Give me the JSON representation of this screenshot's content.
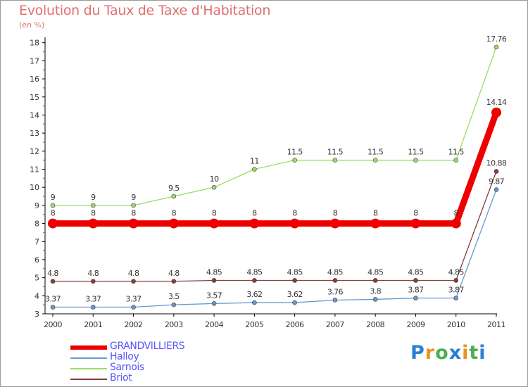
{
  "chart_data": {
    "type": "line",
    "title": "Evolution du Taux de Taxe d'Habitation",
    "ylabel": "(en %)",
    "xlabel": "",
    "ylim": [
      3,
      18.3
    ],
    "yticks": [
      3,
      4,
      5,
      6,
      7,
      8,
      9,
      10,
      11,
      12,
      13,
      14,
      15,
      16,
      17,
      18
    ],
    "categories": [
      "2000",
      "2001",
      "2002",
      "2003",
      "2004",
      "2005",
      "2006",
      "2007",
      "2008",
      "2009",
      "2010",
      "2011"
    ],
    "series": [
      {
        "name": "GRANDVILLIERS",
        "color": "#ee0000",
        "labelColor": "#333333",
        "values": [
          8,
          8,
          8,
          8,
          8,
          8,
          8,
          8,
          8,
          8,
          8,
          14.14
        ],
        "labels": [
          "8",
          "8",
          "8",
          "8",
          "8",
          "8",
          "8",
          "8",
          "8",
          "8",
          "8",
          "14.14"
        ]
      },
      {
        "name": "Halloy",
        "color": "#6699cc",
        "labelColor": "#333333",
        "values": [
          3.37,
          3.37,
          3.37,
          3.5,
          3.57,
          3.62,
          3.62,
          3.76,
          3.8,
          3.87,
          3.87,
          9.87
        ],
        "labels": [
          "3.37",
          "3.37",
          "3.37",
          "3.5",
          "3.57",
          "3.62",
          "3.62",
          "3.76",
          "3.8",
          "3.87",
          "3.87",
          "9.87"
        ]
      },
      {
        "name": "Sarnois",
        "color": "#99dd66",
        "labelColor": "#333333",
        "values": [
          9,
          9,
          9,
          9.5,
          10,
          11,
          11.5,
          11.5,
          11.5,
          11.5,
          11.5,
          17.76
        ],
        "labels": [
          "9",
          "9",
          "9",
          "9.5",
          "10",
          "11",
          "11.5",
          "11.5",
          "11.5",
          "11.5",
          "11.5",
          "17.76"
        ]
      },
      {
        "name": "Briot",
        "color": "#8b3a3a",
        "labelColor": "#333333",
        "values": [
          4.8,
          4.8,
          4.8,
          4.8,
          4.85,
          4.85,
          4.85,
          4.85,
          4.85,
          4.85,
          4.85,
          10.88
        ],
        "labels": [
          "4.8",
          "4.8",
          "4.8",
          "4.8",
          "4.85",
          "4.85",
          "4.85",
          "4.85",
          "4.85",
          "4.85",
          "4.85",
          "10.88"
        ]
      }
    ],
    "legend_position": "bottom-left"
  },
  "legend": {
    "items": [
      {
        "label": "GRANDVILLIERS",
        "color": "#ee0000",
        "textColor": "#5555ff"
      },
      {
        "label": "Halloy",
        "color": "#6699cc",
        "textColor": "#5555ff"
      },
      {
        "label": "Sarnois",
        "color": "#99dd66",
        "textColor": "#5555ff"
      },
      {
        "label": "Briot",
        "color": "#8b3a3a",
        "textColor": "#5555ff"
      }
    ]
  },
  "brand": {
    "letters": [
      "P",
      "r",
      "o",
      "x",
      "i",
      "t",
      "i"
    ],
    "colors": [
      "#2a7fd4",
      "#e8941c",
      "#4caf50",
      "#2a7fd4",
      "#e8941c",
      "#4caf50",
      "#2a7fd4"
    ]
  }
}
